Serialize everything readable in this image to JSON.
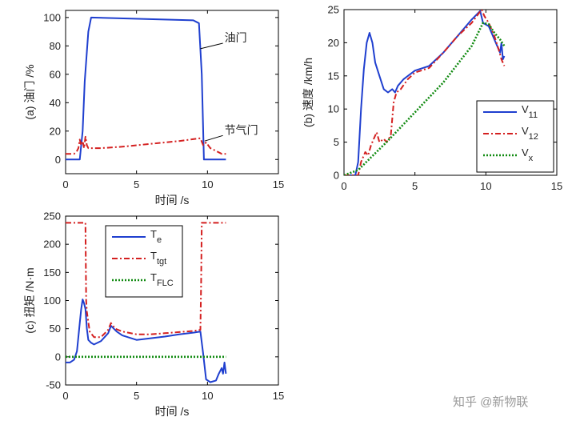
{
  "watermark": "知乎 @新物联",
  "chart_data": [
    {
      "type": "line",
      "id": "a",
      "xlabel": "时间 /s",
      "ylabel": "(a) 油门 /%",
      "xlim": [
        0,
        15
      ],
      "ylim": [
        -10,
        105
      ],
      "xticks": [
        0,
        5,
        10,
        15
      ],
      "yticks": [
        0,
        20,
        40,
        60,
        80,
        100
      ],
      "grid": false,
      "annotations": [
        {
          "text": "油门",
          "x": 11.2,
          "y": 83,
          "ax": 9.5,
          "ay": 78
        },
        {
          "text": "节气门",
          "x": 11.2,
          "y": 18,
          "ax": 9.8,
          "ay": 13
        }
      ],
      "series": [
        {
          "name": "油门",
          "color": "#1f3fcf",
          "style": "solid",
          "x": [
            0,
            0.8,
            1.0,
            1.2,
            1.35,
            1.6,
            1.8,
            9.0,
            9.2,
            9.4,
            9.6,
            9.75,
            10.0,
            11.3
          ],
          "y": [
            0,
            0,
            0,
            20,
            55,
            90,
            100,
            98,
            97,
            96,
            60,
            0,
            0,
            0
          ]
        },
        {
          "name": "节气门",
          "color": "#d42020",
          "style": "dashdot",
          "x": [
            0,
            0.6,
            0.8,
            0.9,
            1.0,
            1.1,
            1.2,
            1.3,
            1.4,
            1.5,
            1.6,
            1.8,
            2.5,
            4.0,
            6.0,
            8.0,
            9.5,
            9.7,
            9.9,
            10.2,
            10.6,
            11.0,
            11.3
          ],
          "y": [
            4,
            4,
            6,
            8,
            14,
            10,
            13,
            8,
            16,
            10,
            8,
            8,
            8,
            9,
            11,
            13,
            15,
            10,
            12,
            8,
            6,
            4,
            4
          ]
        }
      ]
    },
    {
      "type": "line",
      "id": "b",
      "xlabel": "",
      "ylabel": "(b) 速度 /km/h",
      "xlim": [
        0,
        15
      ],
      "ylim": [
        0,
        25
      ],
      "xticks": [
        0,
        5,
        10,
        15
      ],
      "yticks": [
        0,
        5,
        10,
        15,
        20,
        25
      ],
      "grid": false,
      "legend_position": "bottom-right",
      "series": [
        {
          "name": "V",
          "sub": "11",
          "color": "#1f3fcf",
          "style": "solid",
          "x": [
            0,
            0.8,
            1.0,
            1.2,
            1.4,
            1.6,
            1.8,
            2.0,
            2.2,
            2.5,
            2.8,
            3.1,
            3.4,
            3.6,
            3.8,
            4.2,
            5.0,
            6.0,
            7.0,
            8.0,
            9.0,
            9.6,
            9.8,
            10.2,
            10.5,
            10.8,
            11.0,
            11.1,
            11.2,
            11.3
          ],
          "y": [
            0,
            0,
            2,
            10,
            16,
            20,
            21.5,
            20,
            17,
            15,
            13,
            12.5,
            13,
            12.5,
            13.5,
            14.5,
            15.8,
            16.5,
            18.5,
            21,
            23.5,
            24.8,
            23,
            22.5,
            21,
            19.5,
            18.5,
            20,
            17.5,
            18
          ]
        },
        {
          "name": "V",
          "sub": "12",
          "color": "#d42020",
          "style": "dashdot",
          "x": [
            0,
            1.0,
            1.2,
            1.5,
            1.7,
            1.9,
            2.1,
            2.3,
            2.5,
            2.8,
            3.0,
            3.3,
            3.5,
            3.7,
            4.0,
            4.5,
            5.0,
            6.0,
            7.0,
            8.0,
            9.0,
            9.7,
            9.9,
            10.2,
            10.6,
            10.9,
            11.1,
            11.3
          ],
          "y": [
            0,
            0,
            2,
            3.5,
            3,
            4.5,
            5.5,
            6.5,
            5,
            5.5,
            5,
            6,
            11,
            12.5,
            13,
            14.5,
            15.5,
            16.2,
            18.5,
            21,
            23,
            25,
            24,
            23,
            21,
            19,
            17.5,
            16.5
          ]
        },
        {
          "name": "V",
          "sub": "x",
          "color": "#108a10",
          "style": "dotted",
          "x": [
            0,
            1.0,
            3.0,
            5.0,
            7.0,
            9.0,
            9.8,
            10.2,
            10.6,
            11.0,
            11.3
          ],
          "y": [
            0,
            0.8,
            5,
            9.5,
            14,
            19.5,
            23,
            22.8,
            21.5,
            20.5,
            19.5
          ]
        }
      ]
    },
    {
      "type": "line",
      "id": "c",
      "xlabel": "时间 /s",
      "ylabel": "(c) 扭矩 /N·m",
      "xlim": [
        0,
        15
      ],
      "ylim": [
        -50,
        250
      ],
      "xticks": [
        0,
        5,
        10,
        15
      ],
      "yticks": [
        -50,
        0,
        50,
        100,
        150,
        200,
        250
      ],
      "grid": false,
      "legend_position": "top-left",
      "series": [
        {
          "name": "T",
          "sub": "e",
          "color": "#1f3fcf",
          "style": "solid",
          "x": [
            0,
            0.3,
            0.6,
            0.8,
            1.0,
            1.1,
            1.2,
            1.3,
            1.4,
            1.5,
            1.6,
            1.8,
            2.0,
            2.5,
            3.0,
            3.2,
            3.6,
            4.0,
            5.0,
            6.0,
            7.0,
            8.0,
            9.0,
            9.5,
            9.7,
            9.9,
            10.2,
            10.6,
            10.8,
            11.0,
            11.1,
            11.2,
            11.3
          ],
          "y": [
            -10,
            -10,
            -5,
            10,
            60,
            85,
            102,
            95,
            85,
            50,
            30,
            25,
            22,
            28,
            42,
            55,
            45,
            38,
            30,
            33,
            36,
            40,
            43,
            45,
            5,
            -40,
            -45,
            -42,
            -30,
            -20,
            -30,
            -10,
            -30
          ]
        },
        {
          "name": "T",
          "sub": "tgt",
          "color": "#d42020",
          "style": "dashdot",
          "x": [
            0,
            1.4,
            1.45,
            1.5,
            1.7,
            2.0,
            2.5,
            3.0,
            3.2,
            3.5,
            4.0,
            5.0,
            6.0,
            7.0,
            8.0,
            9.0,
            9.5,
            9.55,
            9.6,
            11.3
          ],
          "y": [
            238,
            238,
            100,
            80,
            45,
            35,
            35,
            48,
            60,
            50,
            45,
            40,
            40,
            42,
            44,
            46,
            48,
            130,
            238,
            238
          ]
        },
        {
          "name": "T",
          "sub": "FLC",
          "color": "#108a10",
          "style": "dotted",
          "x": [
            0,
            11.3
          ],
          "y": [
            0,
            0
          ]
        }
      ]
    }
  ]
}
